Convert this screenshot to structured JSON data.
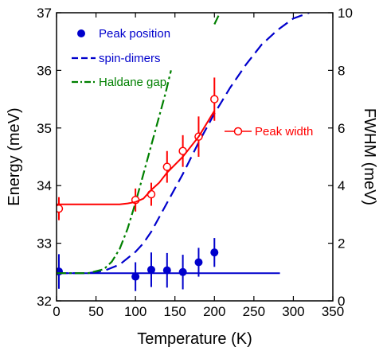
{
  "chart_data": {
    "type": "scatter",
    "title": "",
    "xlabel": "Temperature (K)",
    "ylabel": "Energy (meV)",
    "y2label": "FWHM (meV)",
    "xlim": [
      0,
      350
    ],
    "ylim": [
      32,
      37
    ],
    "y2lim": [
      0,
      10
    ],
    "grid": false,
    "legend_placement": "top-left",
    "x_ticks": [
      0,
      50,
      100,
      150,
      200,
      250,
      300,
      350
    ],
    "y_ticks": [
      32,
      33,
      34,
      35,
      36,
      37
    ],
    "y2_ticks": [
      0,
      2,
      4,
      6,
      8,
      10
    ],
    "series": [
      {
        "name": "Peak position",
        "kind": "points",
        "axis": "left",
        "marker": "filled-circle",
        "color": "#0000CC",
        "x": [
          3,
          100,
          120,
          140,
          160,
          180,
          200
        ],
        "y": [
          32.51,
          32.42,
          32.54,
          32.53,
          32.5,
          32.67,
          32.84
        ],
        "yerr": [
          0.3,
          0.25,
          0.3,
          0.3,
          0.3,
          0.25,
          0.25
        ]
      },
      {
        "name": "",
        "kind": "line",
        "axis": "left",
        "line_style": "solid",
        "color": "#0000CC",
        "x": [
          0,
          283
        ],
        "y": [
          32.48,
          32.48
        ]
      },
      {
        "name": "spin-dimers",
        "kind": "line",
        "axis": "left",
        "line_style": "dashed",
        "color": "#0000CC",
        "x": [
          0,
          40,
          60,
          80,
          100,
          110,
          120,
          130,
          140,
          150,
          160,
          180,
          200,
          220,
          240,
          260,
          280,
          300,
          320
        ],
        "y": [
          32.48,
          32.48,
          32.52,
          32.63,
          32.85,
          33.0,
          33.2,
          33.45,
          33.7,
          33.95,
          34.2,
          34.75,
          35.25,
          35.7,
          36.1,
          36.45,
          36.7,
          36.9,
          37.0
        ]
      },
      {
        "name": "Haldane gap",
        "kind": "line",
        "axis": "left",
        "line_style": "dash-dot",
        "color": "#008000",
        "x": [
          0,
          40,
          60,
          70,
          80,
          90,
          100,
          110,
          120,
          130,
          138,
          145
        ],
        "y": [
          32.48,
          32.48,
          32.55,
          32.68,
          32.9,
          33.25,
          33.7,
          34.2,
          34.7,
          35.2,
          35.6,
          36.0
        ]
      },
      {
        "name": "",
        "kind": "line",
        "axis": "left",
        "line_style": "dash-dot",
        "color": "#008000",
        "x": [
          200,
          207
        ],
        "y": [
          36.8,
          37.0
        ]
      },
      {
        "name": "Peak width",
        "kind": "points",
        "axis": "right",
        "marker": "open-circle",
        "color": "#FF0000",
        "x": [
          3,
          100,
          120,
          140,
          160,
          180,
          200
        ],
        "y": [
          3.2,
          3.5,
          3.7,
          4.65,
          5.2,
          5.7,
          7.0
        ],
        "yerr": [
          0.4,
          0.4,
          0.4,
          0.55,
          0.55,
          0.7,
          0.75
        ]
      },
      {
        "name": "",
        "kind": "line",
        "axis": "right",
        "line_style": "solid",
        "color": "#FF0000",
        "x": [
          0,
          80,
          90,
          100,
          110,
          120,
          130,
          140,
          160,
          180,
          200
        ],
        "y": [
          3.35,
          3.35,
          3.38,
          3.43,
          3.55,
          3.85,
          4.1,
          4.45,
          5.0,
          5.7,
          6.6
        ]
      }
    ]
  }
}
